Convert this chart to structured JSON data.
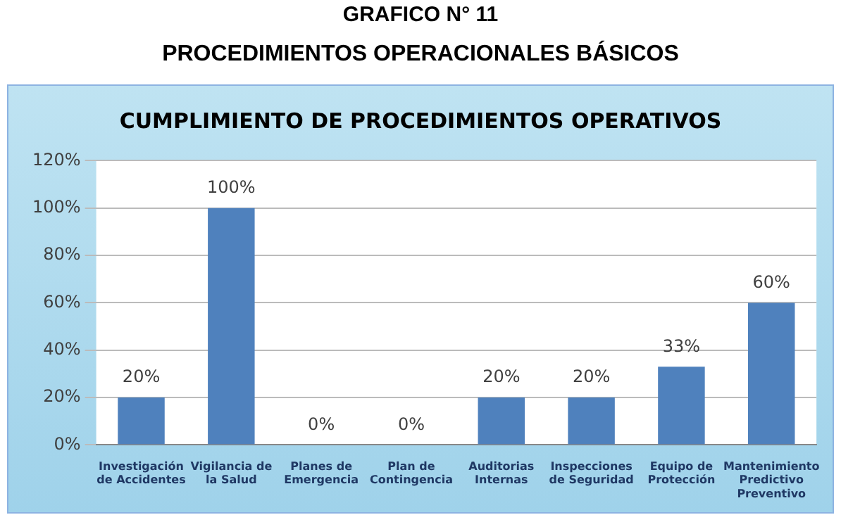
{
  "chart_data": {
    "type": "bar",
    "title": "GRAFICO N° 11",
    "subtitle": "PROCEDIMIENTOS OPERACIONALES BÁSICOS",
    "annotations": [
      "CUMPLIMIENTO DE PROCEDIMIENTOS OPERATIVOS"
    ],
    "categories": [
      "Investigación de Accidentes",
      "Vigilancia de la Salud",
      "Planes de Emergencia",
      "Plan de Contingencia",
      "Auditorias Internas",
      "Inspecciones de Seguridad",
      "Equipo de Protección",
      "Mantenimiento Predictivo Preventivo"
    ],
    "values": [
      20,
      100,
      0,
      0,
      20,
      20,
      33,
      60
    ],
    "value_labels": [
      "20%",
      "100%",
      "0%",
      "0%",
      "20%",
      "20%",
      "33%",
      "60%"
    ],
    "color": "#4f81bd",
    "ylim": [
      0,
      120
    ],
    "yticks": [
      {
        "value": 0,
        "label": "0%"
      },
      {
        "value": 20,
        "label": "20%"
      },
      {
        "value": 40,
        "label": "40%"
      },
      {
        "value": 60,
        "label": "60%"
      },
      {
        "value": 80,
        "label": "80%"
      },
      {
        "value": 100,
        "label": "100%"
      },
      {
        "value": 120,
        "label": "120%"
      }
    ],
    "grid": "y"
  }
}
